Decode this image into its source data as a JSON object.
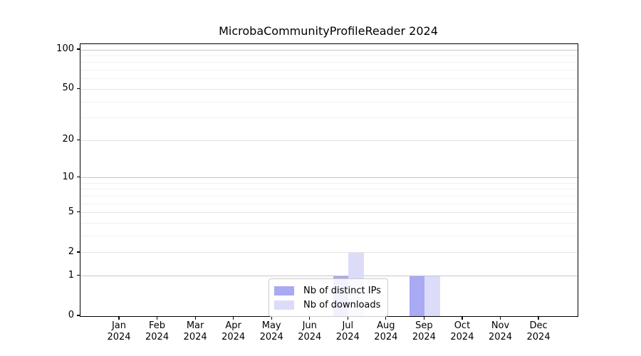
{
  "title": "MicrobaCommunityProfileReader 2024",
  "chart_data": {
    "type": "bar",
    "title": "MicrobaCommunityProfileReader 2024",
    "categories": [
      "Jan",
      "Feb",
      "Mar",
      "Apr",
      "May",
      "Jun",
      "Jul",
      "Aug",
      "Sep",
      "Oct",
      "Nov",
      "Dec"
    ],
    "category_year": "2024",
    "series": [
      {
        "name": "Nb of distinct IPs",
        "color": "#a9a9f4",
        "values": [
          0,
          0,
          0,
          0,
          0,
          0,
          1,
          0,
          1,
          0,
          0,
          0
        ]
      },
      {
        "name": "Nb of downloads",
        "color": "#dcdcf9",
        "values": [
          0,
          0,
          0,
          0,
          0,
          0,
          2,
          0,
          1,
          0,
          0,
          0
        ]
      }
    ],
    "yticks": [
      0,
      1,
      2,
      5,
      10,
      20,
      50,
      100
    ],
    "minor_gridlines": [
      3,
      4,
      6,
      7,
      8,
      9,
      30,
      40,
      60,
      70,
      80,
      90
    ],
    "scale": "log1p",
    "ylim": [
      0,
      110
    ],
    "xlabel": "",
    "ylabel": "",
    "grid": true,
    "legend_position": "lower center",
    "colors": {
      "spine": "#000000",
      "grid_major": "#c6c6c6",
      "grid_mid": "#e4e4e4",
      "grid_minor": "#f0f0f0",
      "background": "#ffffff"
    }
  }
}
